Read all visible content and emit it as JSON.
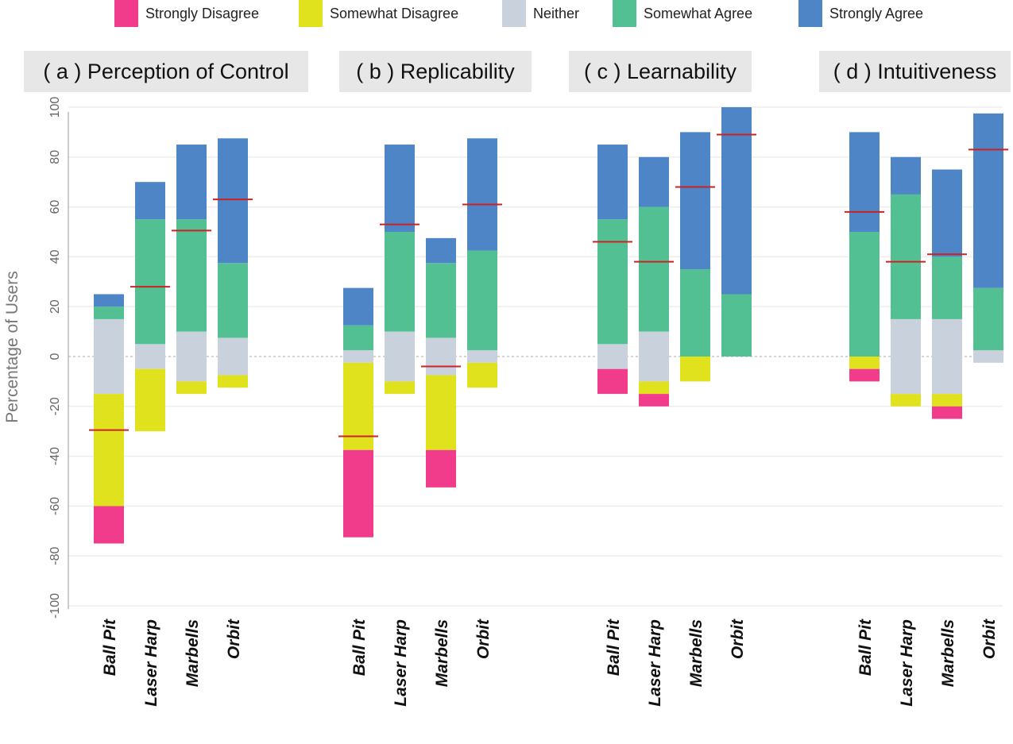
{
  "chart_data": {
    "type": "bar",
    "stacked": "diverging",
    "ylabel": "Percentage of Users",
    "ylim": [
      -100,
      100
    ],
    "yticks": [
      -100,
      -80,
      -60,
      -40,
      -20,
      0,
      20,
      40,
      60,
      80,
      100
    ],
    "grid": true,
    "legend_position": "top",
    "legend": [
      {
        "name": "Strongly Disagree",
        "color": "#f03c8a"
      },
      {
        "name": "Somewhat Disagree",
        "color": "#dfe21c"
      },
      {
        "name": "Neither",
        "color": "#c9d1dc"
      },
      {
        "name": "Somewhat Agree",
        "color": "#52c093"
      },
      {
        "name": "Strongly Agree",
        "color": "#4d85c6"
      }
    ],
    "mean_marker_color": "#cc2222",
    "categories": [
      "Ball Pit",
      "Laser Harp",
      "Marbells",
      "Orbit"
    ],
    "panels": [
      {
        "title": "( a ) Perception of Control",
        "bars": [
          {
            "strongly_disagree": 15,
            "somewhat_disagree": 45,
            "neither": 30,
            "somewhat_agree": 5,
            "strongly_agree": 5,
            "mean": -29.5
          },
          {
            "strongly_disagree": 0,
            "somewhat_disagree": 25,
            "neither": 10,
            "somewhat_agree": 50,
            "strongly_agree": 15,
            "mean": 28
          },
          {
            "strongly_disagree": 0,
            "somewhat_disagree": 5,
            "neither": 20,
            "somewhat_agree": 45,
            "strongly_agree": 30,
            "mean": 50.5
          },
          {
            "strongly_disagree": 0,
            "somewhat_disagree": 5,
            "neither": 15,
            "somewhat_agree": 30,
            "strongly_agree": 50,
            "mean": 63
          }
        ]
      },
      {
        "title": "( b ) Replicability",
        "bars": [
          {
            "strongly_disagree": 35,
            "somewhat_disagree": 35,
            "neither": 5,
            "somewhat_agree": 10,
            "strongly_agree": 15,
            "mean": -32
          },
          {
            "strongly_disagree": 0,
            "somewhat_disagree": 5,
            "neither": 20,
            "somewhat_agree": 40,
            "strongly_agree": 35,
            "mean": 53
          },
          {
            "strongly_disagree": 15,
            "somewhat_disagree": 30,
            "neither": 15,
            "somewhat_agree": 30,
            "strongly_agree": 10,
            "mean": -4
          },
          {
            "strongly_disagree": 0,
            "somewhat_disagree": 10,
            "neither": 5,
            "somewhat_agree": 40,
            "strongly_agree": 45,
            "mean": 61
          }
        ]
      },
      {
        "title": "( c ) Learnability",
        "bars": [
          {
            "strongly_disagree": 10,
            "somewhat_disagree": 0,
            "neither": 10,
            "somewhat_agree": 50,
            "strongly_agree": 30,
            "mean": 46
          },
          {
            "strongly_disagree": 5,
            "somewhat_disagree": 5,
            "neither": 20,
            "somewhat_agree": 50,
            "strongly_agree": 20,
            "mean": 38
          },
          {
            "strongly_disagree": 0,
            "somewhat_disagree": 10,
            "neither": 0,
            "somewhat_agree": 35,
            "strongly_agree": 55,
            "mean": 68
          },
          {
            "strongly_disagree": 0,
            "somewhat_disagree": 0,
            "neither": 0,
            "somewhat_agree": 25,
            "strongly_agree": 75,
            "mean": 89
          }
        ]
      },
      {
        "title": "( d ) Intuitiveness",
        "bars": [
          {
            "strongly_disagree": 5,
            "somewhat_disagree": 5,
            "neither": 0,
            "somewhat_agree": 50,
            "strongly_agree": 40,
            "mean": 58
          },
          {
            "strongly_disagree": 0,
            "somewhat_disagree": 5,
            "neither": 30,
            "somewhat_agree": 50,
            "strongly_agree": 15,
            "mean": 38
          },
          {
            "strongly_disagree": 5,
            "somewhat_disagree": 5,
            "neither": 30,
            "somewhat_agree": 25,
            "strongly_agree": 35,
            "mean": 41
          },
          {
            "strongly_disagree": 0,
            "somewhat_disagree": 0,
            "neither": 5,
            "somewhat_agree": 25,
            "strongly_agree": 70,
            "mean": 83
          }
        ]
      }
    ]
  }
}
